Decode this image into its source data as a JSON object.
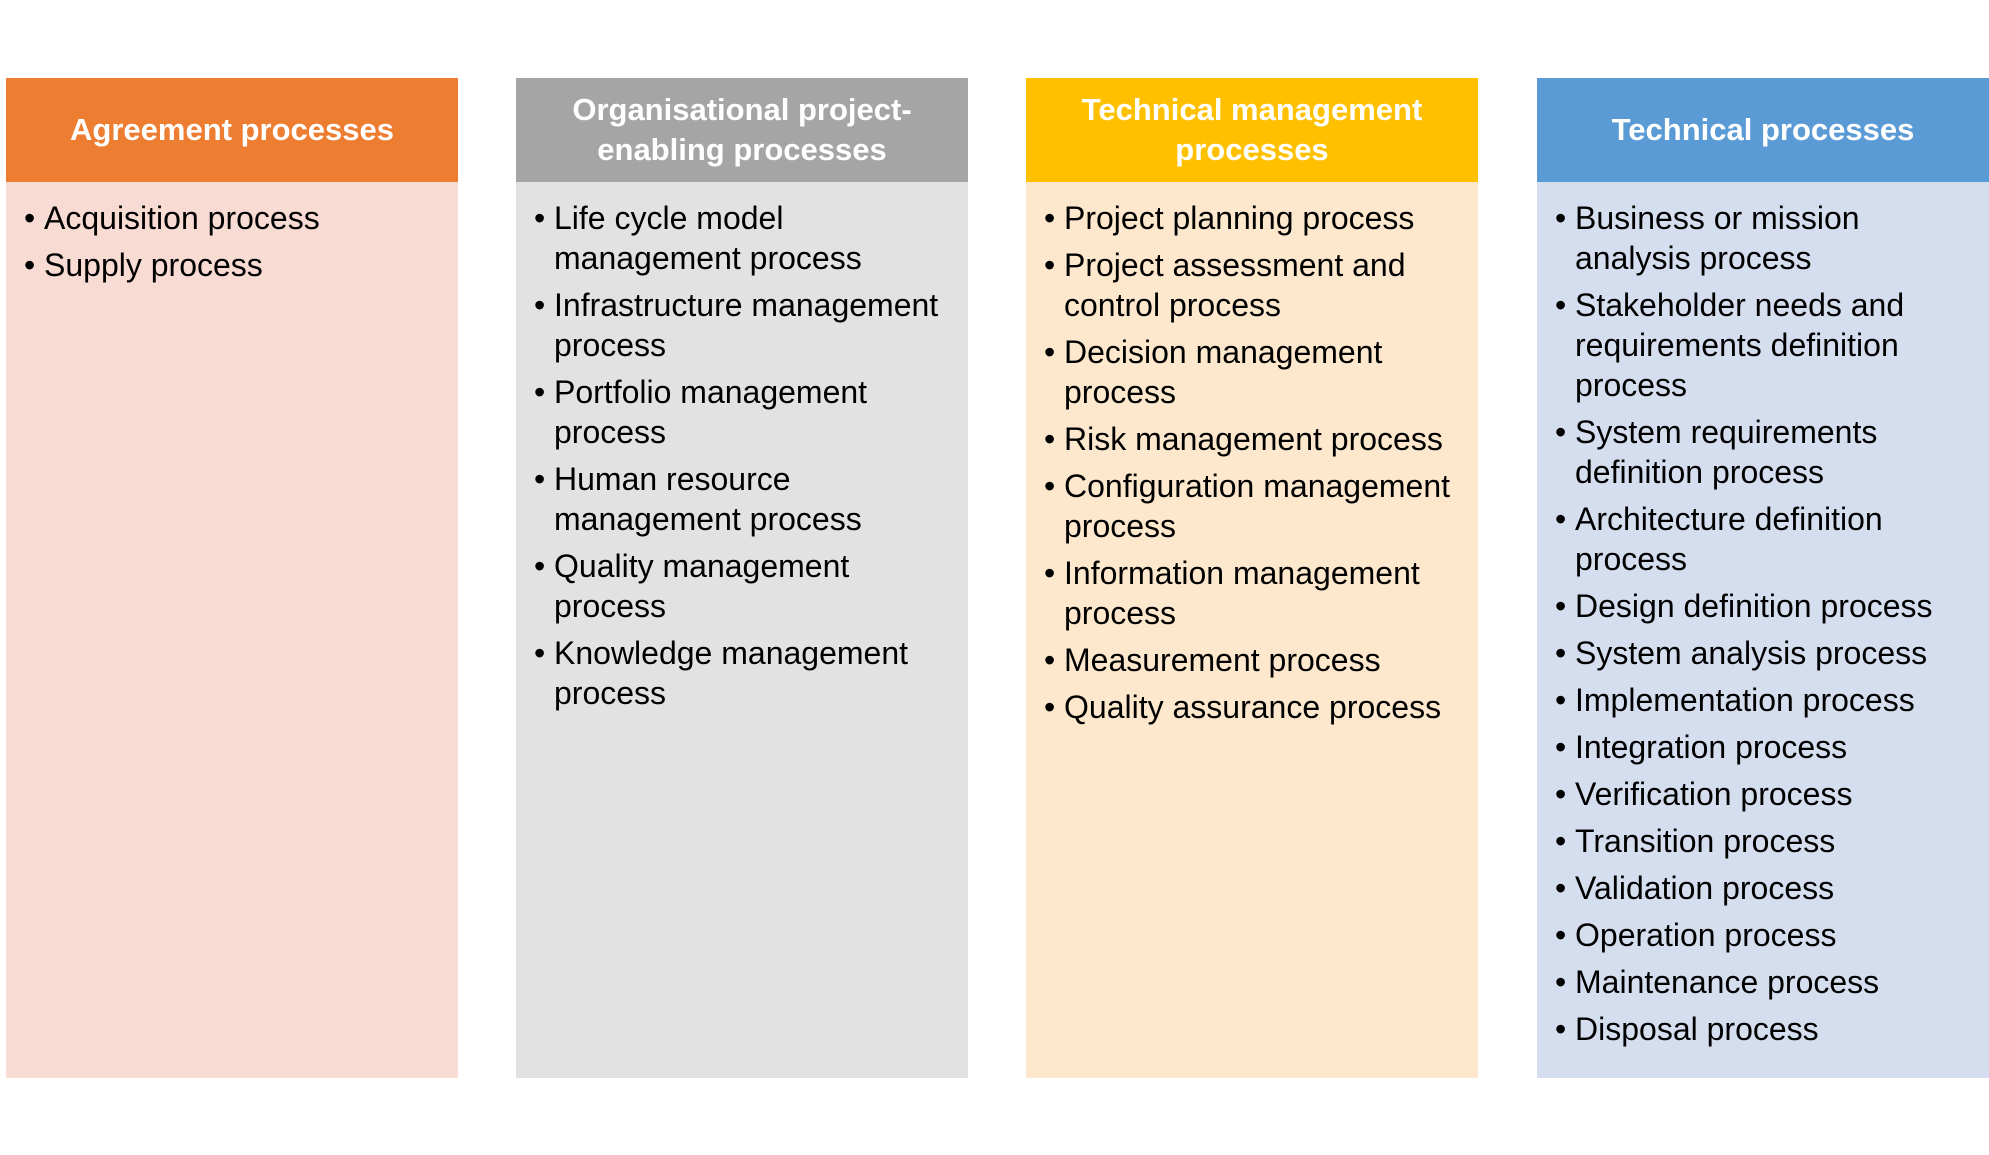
{
  "columns": [
    {
      "title": "Agreement processes",
      "header_color": "#ED7D31",
      "body_color": "#F8DBD2",
      "items": [
        "Acquisition process",
        "Supply process"
      ]
    },
    {
      "title": "Organisational project-enabling processes",
      "header_color": "#A5A5A5",
      "body_color": "#E2E2E2",
      "items": [
        "Life cycle model management process",
        "Infrastructure management process",
        "Portfolio management process",
        "Human resource management process",
        "Quality management process",
        "Knowledge management process"
      ]
    },
    {
      "title": "Technical management processes",
      "header_color": "#FFC000",
      "body_color": "#FDE8CD",
      "items": [
        "Project planning process",
        "Project assessment and control process",
        "Decision management process",
        "Risk management process",
        "Configuration management process",
        "Information management process",
        "Measurement process",
        "Quality assurance process"
      ]
    },
    {
      "title": "Technical processes",
      "header_color": "#5B9BD5",
      "body_color": "#D5DEEF",
      "items": [
        "Business or mission analysis process",
        "Stakeholder needs and requirements definition process",
        "System requirements definition process",
        "Architecture definition process",
        "Design definition process",
        "System analysis process",
        "Implementation process",
        "Integration process",
        "Verification process",
        "Transition process",
        "Validation process",
        "Operation process",
        "Maintenance process",
        "Disposal process"
      ]
    }
  ]
}
